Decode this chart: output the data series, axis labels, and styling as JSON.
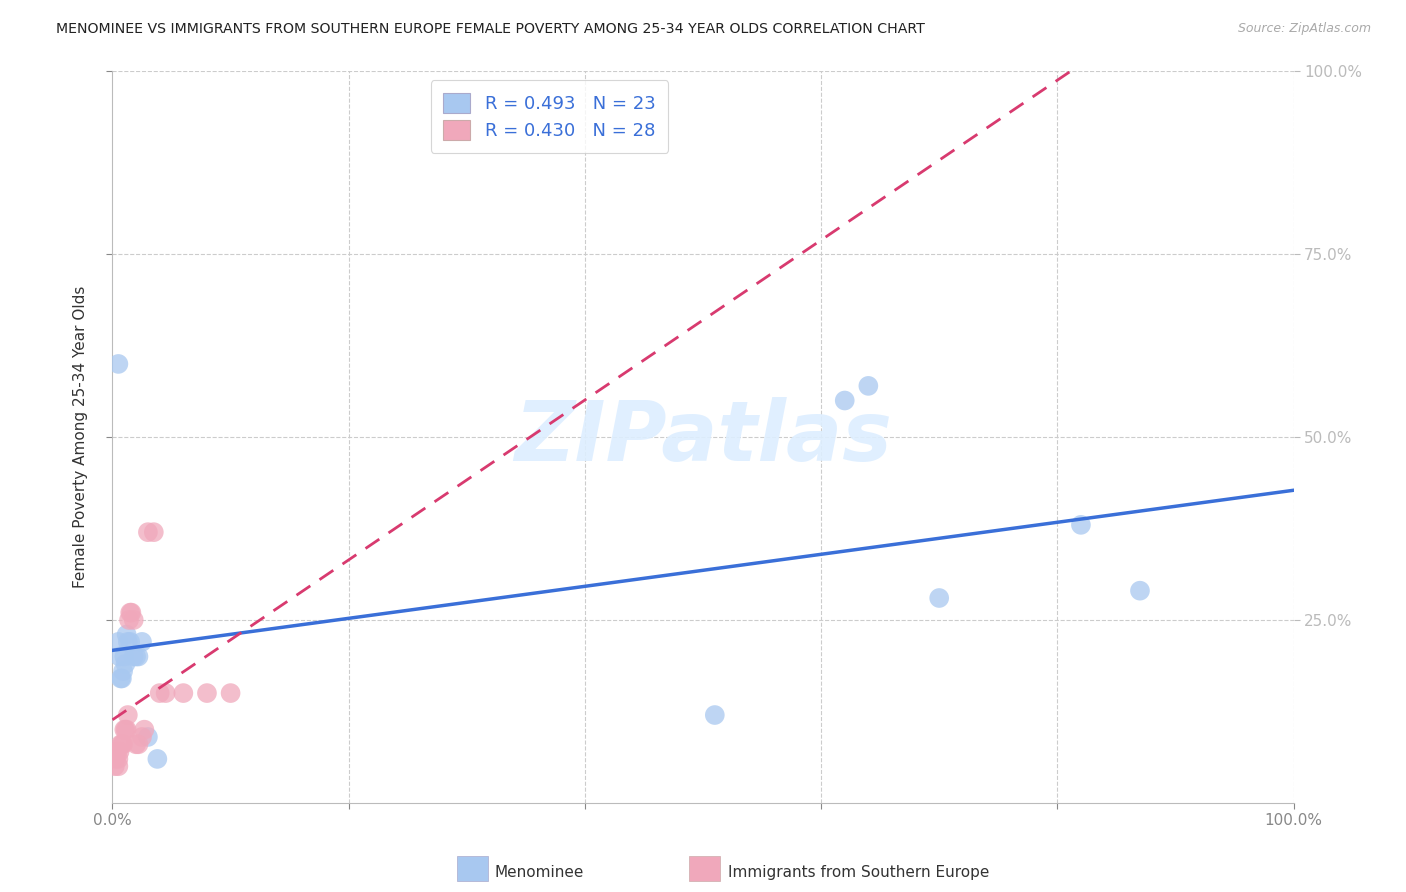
{
  "title": "MENOMINEE VS IMMIGRANTS FROM SOUTHERN EUROPE FEMALE POVERTY AMONG 25-34 YEAR OLDS CORRELATION CHART",
  "source": "Source: ZipAtlas.com",
  "ylabel": "Female Poverty Among 25-34 Year Olds",
  "xlim": [
    0,
    1.0
  ],
  "ylim": [
    0,
    1.0
  ],
  "xtick_labels": [
    "0.0%",
    "",
    "",
    "",
    "",
    "100.0%"
  ],
  "xtick_vals": [
    0.0,
    0.2,
    0.4,
    0.6,
    0.8,
    1.0
  ],
  "right_ytick_labels": [
    "25.0%",
    "50.0%",
    "75.0%",
    "100.0%"
  ],
  "right_ytick_vals": [
    0.25,
    0.5,
    0.75,
    1.0
  ],
  "menominee_color": "#a8c8f0",
  "immigrants_color": "#f0a8bb",
  "trendline_menominee_color": "#3a6fd8",
  "trendline_immigrants_color": "#d83a6f",
  "watermark_text": "ZIPatlas",
  "watermark_color": "#ddeeff",
  "menominee_x": [
    0.005,
    0.006,
    0.007,
    0.008,
    0.009,
    0.01,
    0.011,
    0.012,
    0.013,
    0.015,
    0.018,
    0.02,
    0.022,
    0.025,
    0.03,
    0.038,
    0.005,
    0.62,
    0.64,
    0.7,
    0.82,
    0.87,
    0.51
  ],
  "menominee_y": [
    0.22,
    0.2,
    0.17,
    0.17,
    0.18,
    0.2,
    0.19,
    0.23,
    0.22,
    0.22,
    0.2,
    0.2,
    0.2,
    0.22,
    0.09,
    0.06,
    0.6,
    0.55,
    0.57,
    0.28,
    0.38,
    0.29,
    0.12
  ],
  "immigrants_x": [
    0.002,
    0.003,
    0.004,
    0.005,
    0.005,
    0.006,
    0.007,
    0.008,
    0.009,
    0.01,
    0.011,
    0.012,
    0.013,
    0.014,
    0.015,
    0.016,
    0.018,
    0.02,
    0.022,
    0.025,
    0.027,
    0.03,
    0.035,
    0.04,
    0.045,
    0.06,
    0.08,
    0.1
  ],
  "immigrants_y": [
    0.05,
    0.06,
    0.07,
    0.06,
    0.05,
    0.07,
    0.08,
    0.08,
    0.08,
    0.1,
    0.1,
    0.1,
    0.12,
    0.25,
    0.26,
    0.26,
    0.25,
    0.08,
    0.08,
    0.09,
    0.1,
    0.37,
    0.37,
    0.15,
    0.15,
    0.15,
    0.15,
    0.15
  ],
  "background_color": "#ffffff",
  "legend_label1": "R = 0.493   N = 23",
  "legend_label2": "R = 0.430   N = 28",
  "bottom_label1": "Menominee",
  "bottom_label2": "Immigrants from Southern Europe"
}
